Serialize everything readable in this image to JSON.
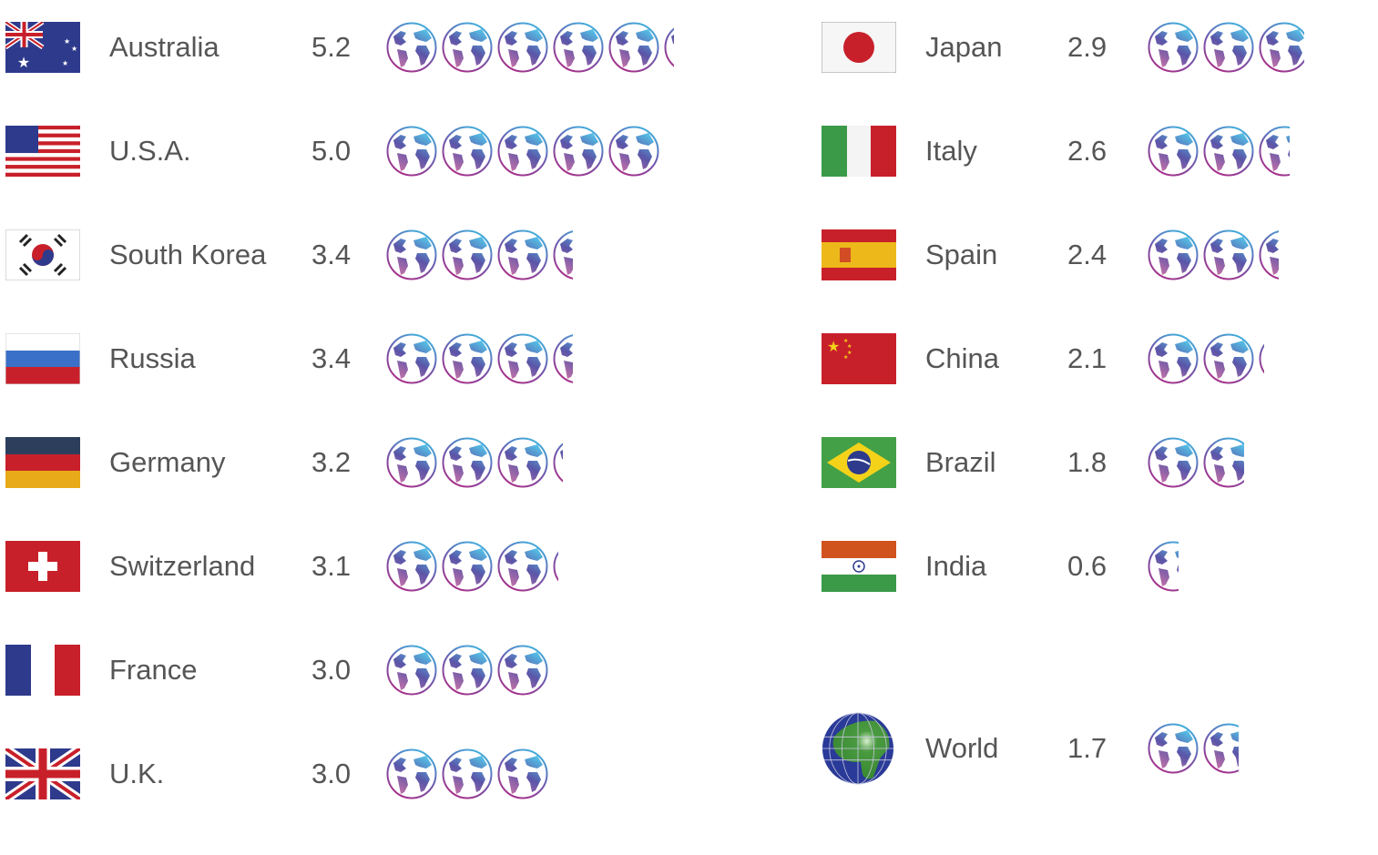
{
  "chart_data": {
    "type": "pictograph",
    "unit_icon": "globe-icon",
    "columns": [
      [
        {
          "name": "Australia",
          "value": 5.2,
          "label": "5.2",
          "flag": "au"
        },
        {
          "name": "U.S.A.",
          "value": 5.0,
          "label": "5.0",
          "flag": "us"
        },
        {
          "name": "South Korea",
          "value": 3.4,
          "label": "3.4",
          "flag": "kr"
        },
        {
          "name": "Russia",
          "value": 3.4,
          "label": "3.4",
          "flag": "ru"
        },
        {
          "name": "Germany",
          "value": 3.2,
          "label": "3.2",
          "flag": "de"
        },
        {
          "name": "Switzerland",
          "value": 3.1,
          "label": "3.1",
          "flag": "ch"
        },
        {
          "name": "France",
          "value": 3.0,
          "label": "3.0",
          "flag": "fr"
        },
        {
          "name": "U.K.",
          "value": 3.0,
          "label": "3.0",
          "flag": "uk"
        }
      ],
      [
        {
          "name": "Japan",
          "value": 2.9,
          "label": "2.9",
          "flag": "jp"
        },
        {
          "name": "Italy",
          "value": 2.6,
          "label": "2.6",
          "flag": "it"
        },
        {
          "name": "Spain",
          "value": 2.4,
          "label": "2.4",
          "flag": "es"
        },
        {
          "name": "China",
          "value": 2.1,
          "label": "2.1",
          "flag": "cn"
        },
        {
          "name": "Brazil",
          "value": 1.8,
          "label": "1.8",
          "flag": "br"
        },
        {
          "name": "India",
          "value": 0.6,
          "label": "0.6",
          "flag": "in"
        },
        {
          "name": "World",
          "value": 1.7,
          "label": "1.7",
          "flag": "world"
        }
      ]
    ]
  }
}
